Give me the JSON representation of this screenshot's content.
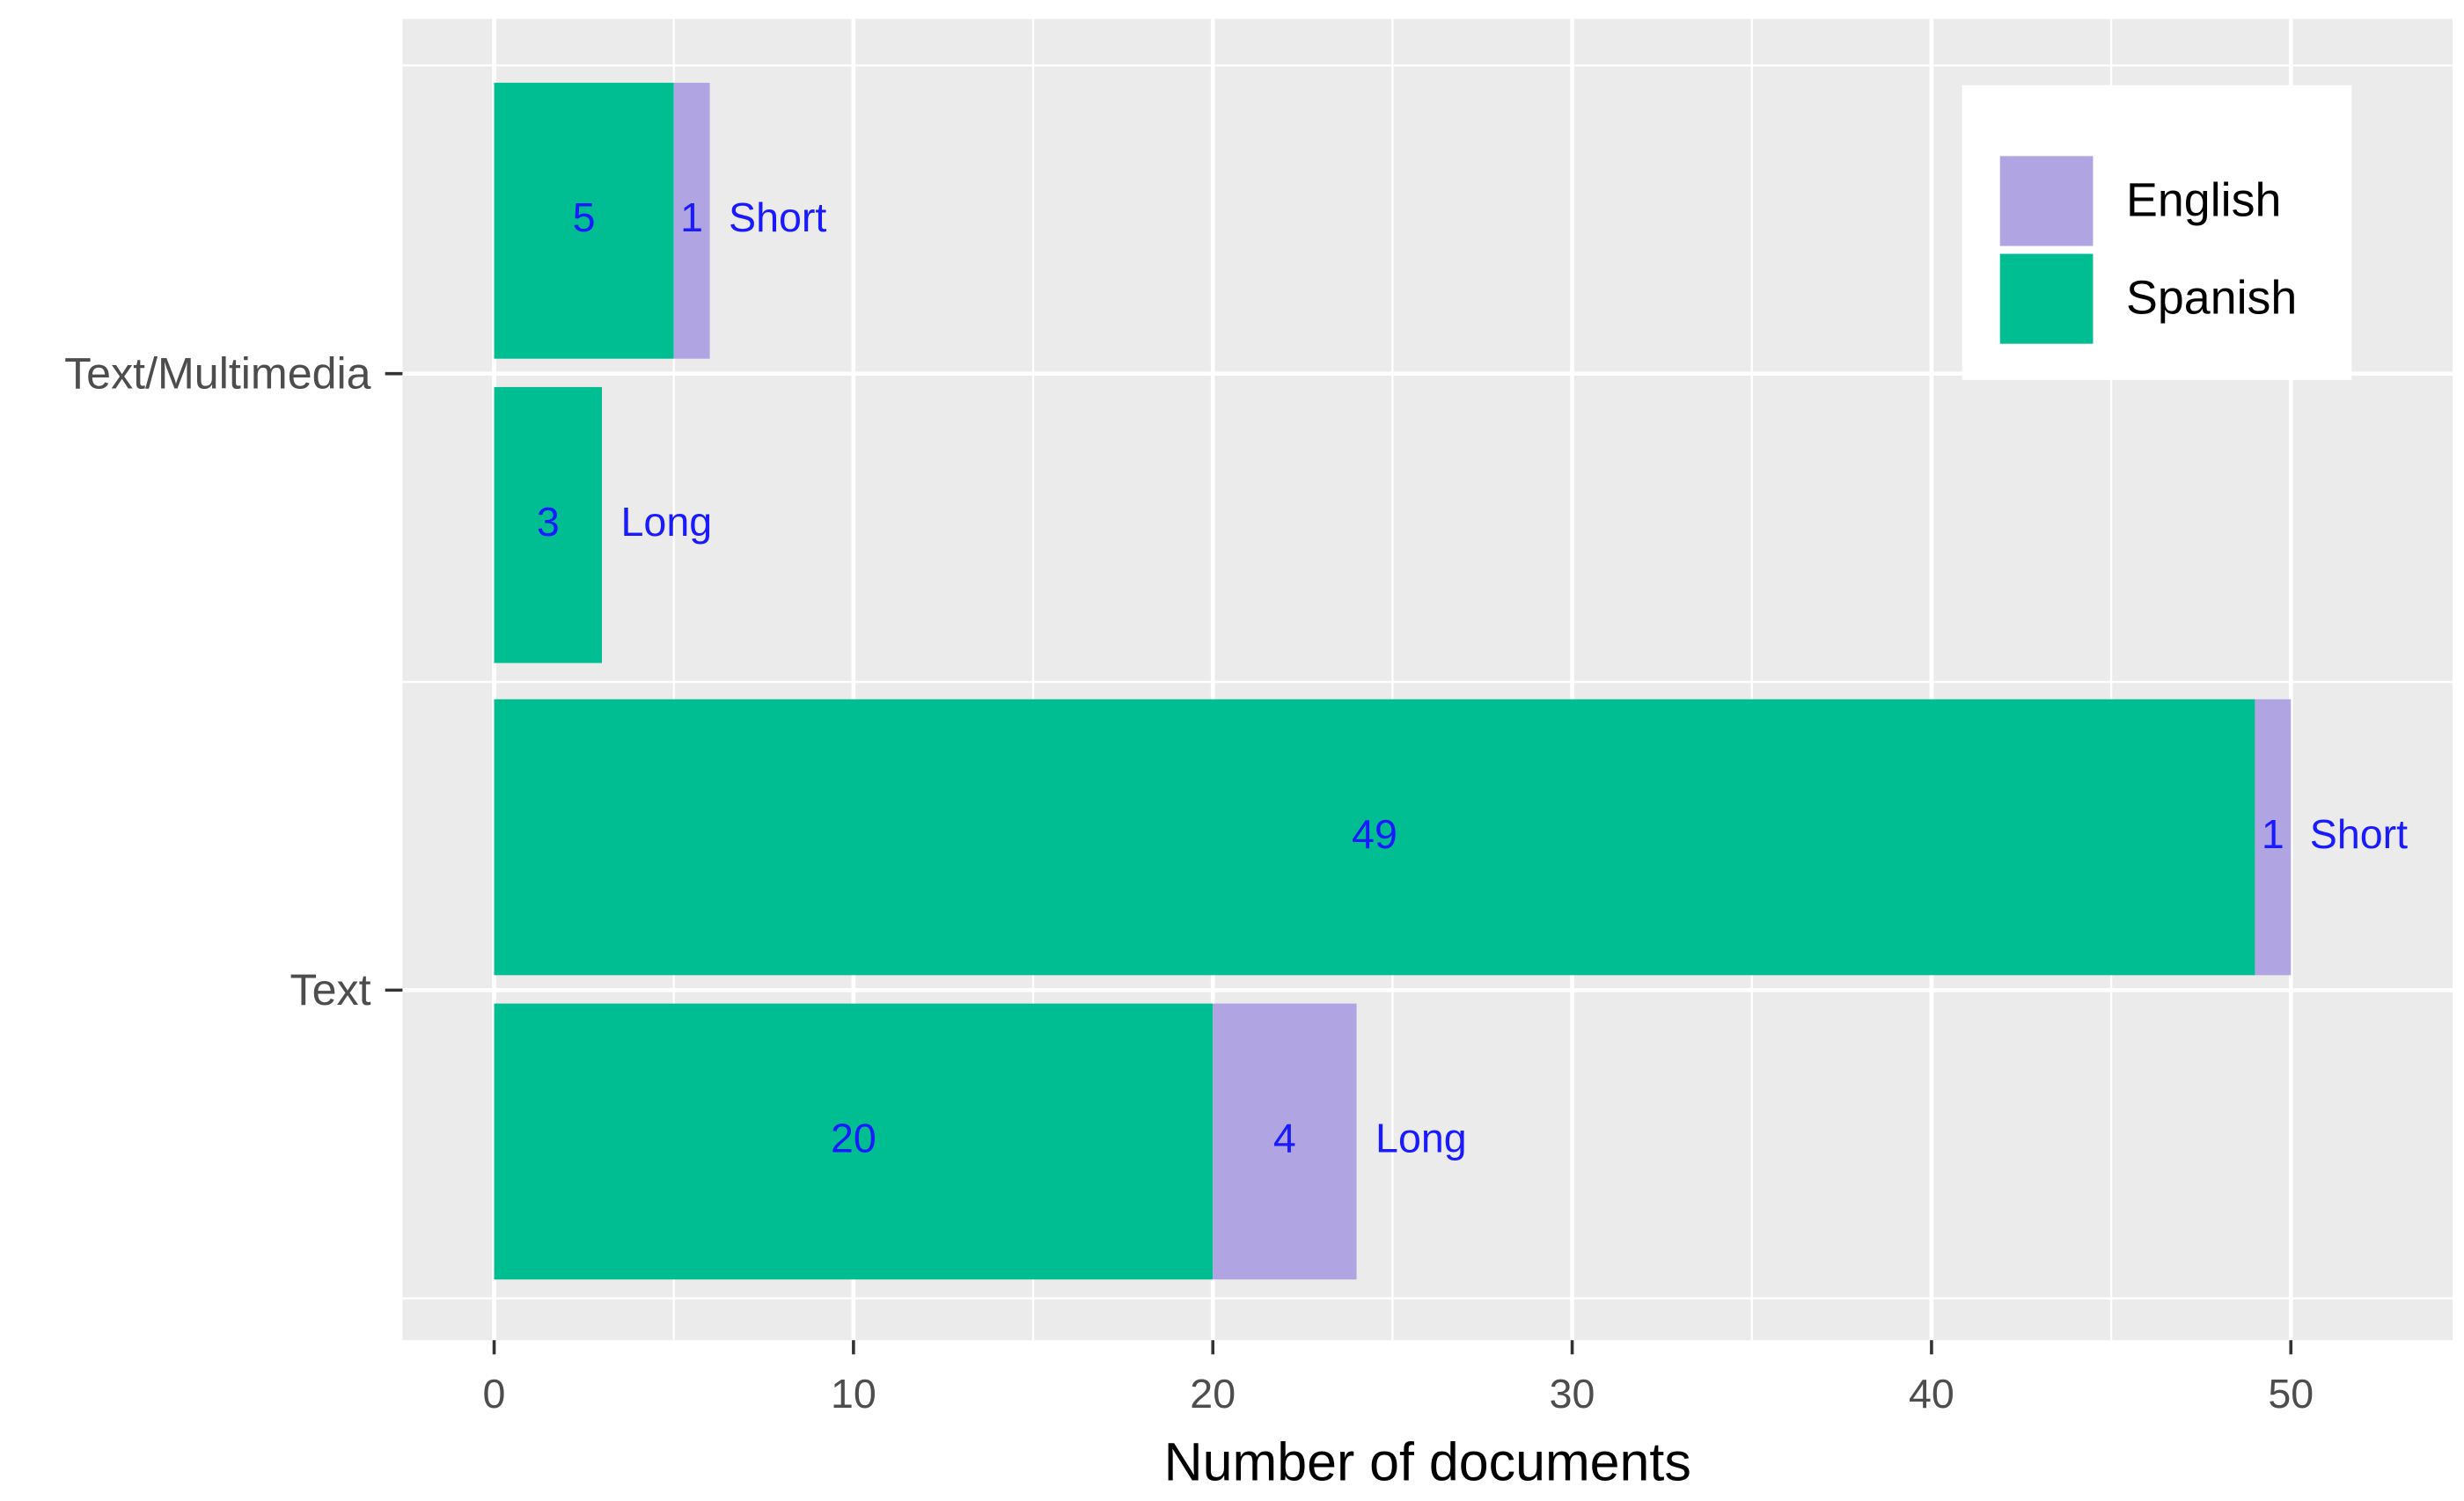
{
  "chart_data": {
    "type": "bar",
    "orientation": "horizontal",
    "stacked": true,
    "x_label": "Number of documents",
    "groups": [
      "Text/Multimedia",
      "Text"
    ],
    "bar_labels": [
      "Short",
      "Long",
      "Short",
      "Long"
    ],
    "bar_groups": [
      0,
      0,
      1,
      1
    ],
    "series": [
      {
        "name": "English",
        "color": "#b0a4e3",
        "values": [
          1,
          null,
          1,
          4
        ]
      },
      {
        "name": "Spanish",
        "color": "#00be92",
        "values": [
          5,
          3,
          49,
          20
        ]
      }
    ],
    "xlim": [
      -2.55,
      54.5
    ],
    "xticks": [
      0,
      10,
      20,
      30,
      40,
      50
    ],
    "grid": true,
    "legend": "top-right",
    "label_color": "#1a1aff"
  }
}
